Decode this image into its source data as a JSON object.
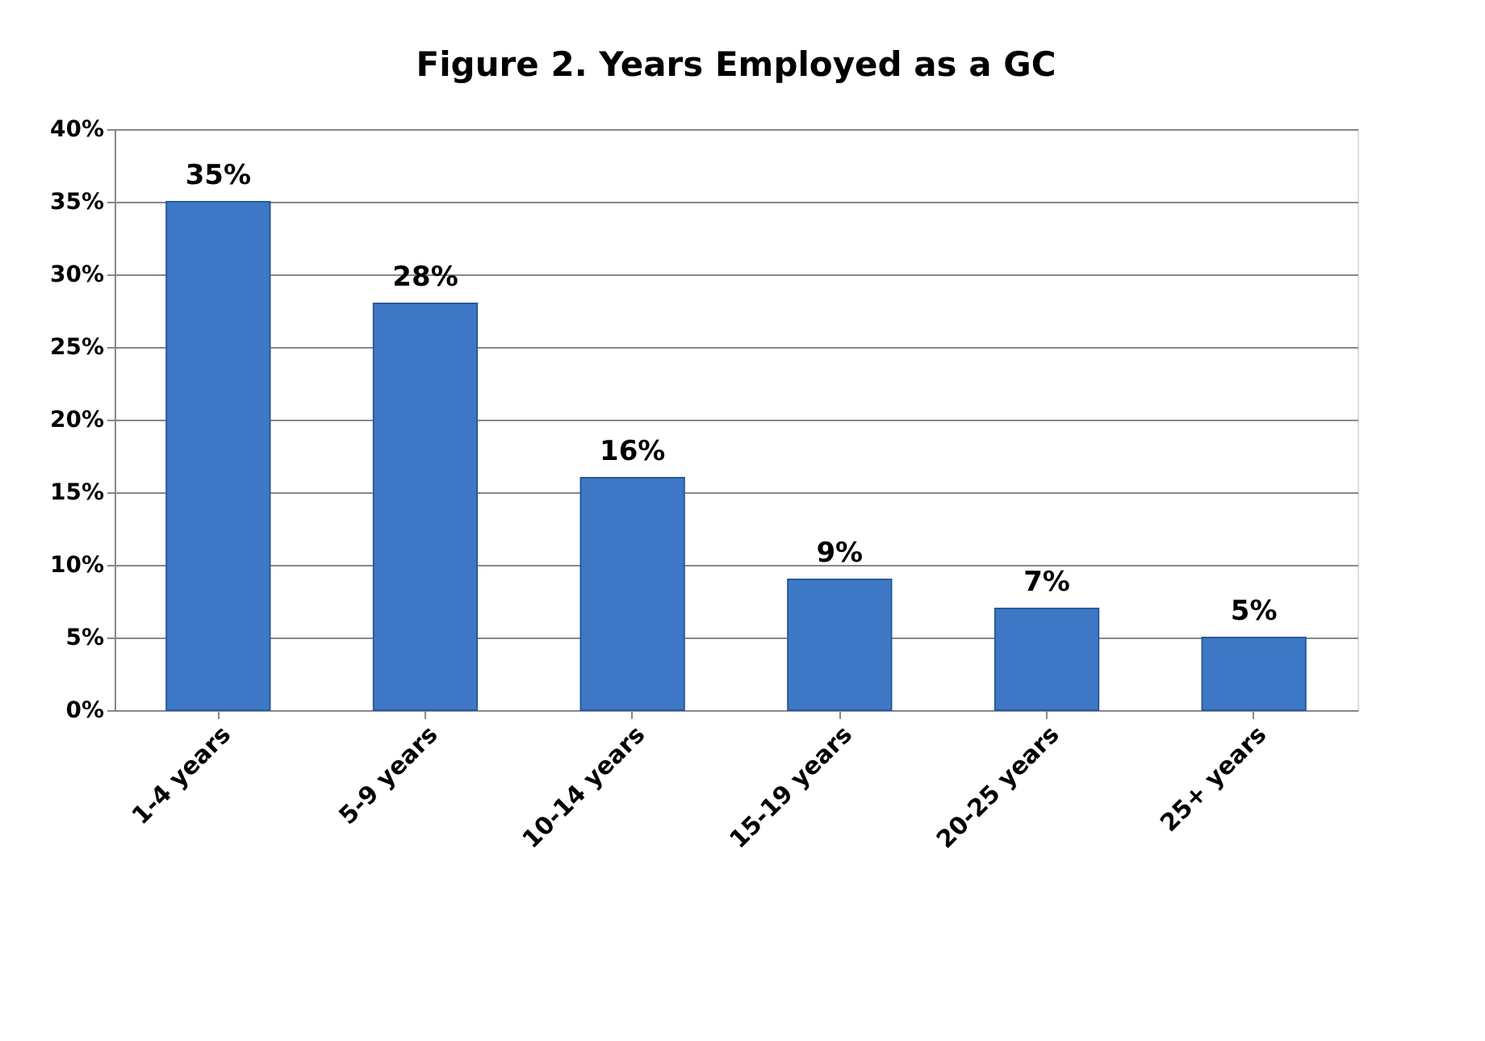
{
  "chart_data": {
    "type": "bar",
    "title": "Figure 2. Years Employed as a GC",
    "categories": [
      "1-4 years",
      "5-9 years",
      "10-14 years",
      "15-19 years",
      "20-25 years",
      "25+ years"
    ],
    "values": [
      35,
      28,
      16,
      9,
      7,
      5
    ],
    "value_labels": [
      "35%",
      "28%",
      "16%",
      "9%",
      "7%",
      "5%"
    ],
    "color": "#3d78c6",
    "ylim": [
      0,
      40
    ],
    "yticks": [
      {
        "value": 0,
        "label": "0%"
      },
      {
        "value": 5,
        "label": "5%"
      },
      {
        "value": 10,
        "label": "10%"
      },
      {
        "value": 15,
        "label": "15%"
      },
      {
        "value": 20,
        "label": "20%"
      },
      {
        "value": 25,
        "label": "25%"
      },
      {
        "value": 30,
        "label": "30%"
      },
      {
        "value": 35,
        "label": "35%"
      },
      {
        "value": 40,
        "label": "40%"
      }
    ],
    "grid": "y"
  }
}
